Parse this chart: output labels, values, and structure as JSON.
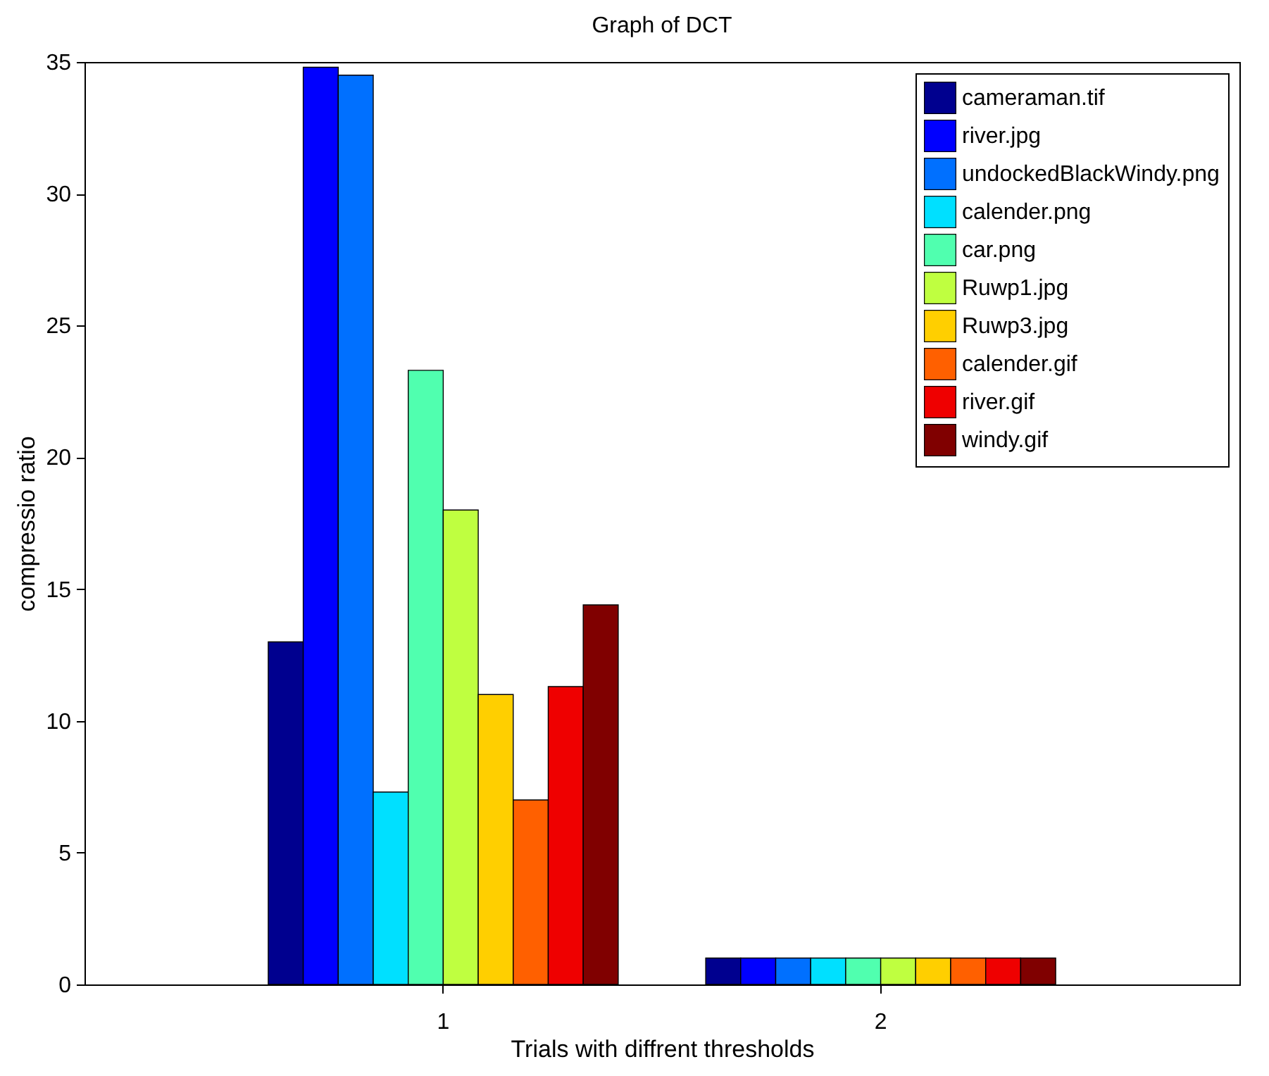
{
  "chart_data": {
    "type": "bar",
    "title": "Graph of DCT",
    "xlabel": "Trials with diffrent thresholds",
    "ylabel": "compressio ratio",
    "categories": [
      "1",
      "2"
    ],
    "series": [
      {
        "name": "cameraman.tif",
        "color": "#00008f",
        "values": [
          13,
          1
        ]
      },
      {
        "name": "river.jpg",
        "color": "#0000ff",
        "values": [
          34.8,
          1
        ]
      },
      {
        "name": "undockedBlackWindy.png",
        "color": "#0070ff",
        "values": [
          34.5,
          1
        ]
      },
      {
        "name": "calender.png",
        "color": "#00e0ff",
        "values": [
          7.3,
          1
        ]
      },
      {
        "name": "car.png",
        "color": "#50ffaf",
        "values": [
          23.3,
          1
        ]
      },
      {
        "name": "Ruwp1.jpg",
        "color": "#bfff40",
        "values": [
          18,
          1
        ]
      },
      {
        "name": "Ruwp3.jpg",
        "color": "#ffcf00",
        "values": [
          11,
          1
        ]
      },
      {
        "name": "calender.gif",
        "color": "#ff6000",
        "values": [
          7,
          1
        ]
      },
      {
        "name": "river.gif",
        "color": "#ef0000",
        "values": [
          11.3,
          1
        ]
      },
      {
        "name": "windy.gif",
        "color": "#800000",
        "values": [
          14.4,
          1
        ]
      }
    ],
    "ylim": [
      0,
      35
    ],
    "yticks": [
      0,
      5,
      10,
      15,
      20,
      25,
      30,
      35
    ],
    "legend": "top right"
  }
}
